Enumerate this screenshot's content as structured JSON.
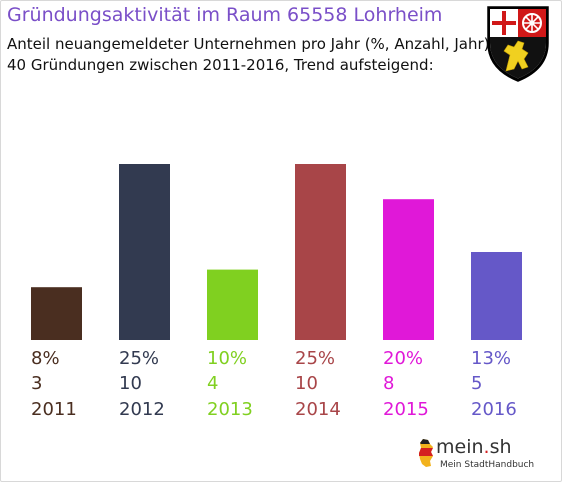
{
  "header": {
    "title": "Gründungsaktivität im Raum 65558 Lohrheim",
    "subtitle_line1": "Anteil neuangemeldeter Unternehmen pro Jahr (%, Anzahl, Jahr)",
    "subtitle_line2": "40 Gründungen zwischen 2011-2016, Trend aufsteigend:"
  },
  "logo": {
    "brand_main": "mein",
    "brand_dot": ".",
    "brand_tld": "sh",
    "tagline": "Mein StadtHandbuch"
  },
  "chart_data": {
    "type": "bar",
    "categories": [
      "2011",
      "2012",
      "2013",
      "2014",
      "2015",
      "2016"
    ],
    "percent_labels": [
      "8%",
      "25%",
      "10%",
      "25%",
      "20%",
      "13%"
    ],
    "values": [
      3,
      10,
      4,
      10,
      8,
      5
    ],
    "colors": [
      "#4a2e20",
      "#323a50",
      "#80d020",
      "#a84548",
      "#e018d8",
      "#6558c8"
    ],
    "ylim": [
      0,
      10
    ]
  }
}
